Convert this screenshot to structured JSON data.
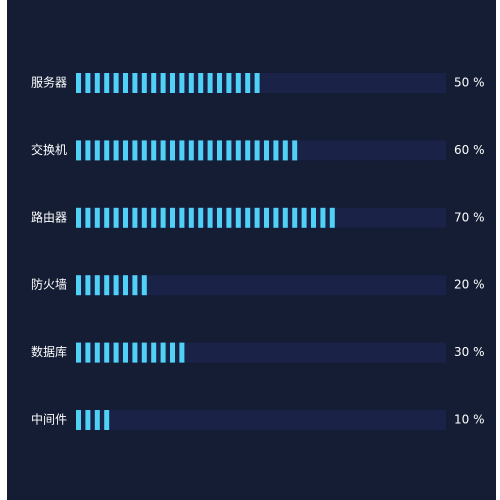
{
  "colors": {
    "background": "#141d34",
    "track": "#1a2247",
    "bar": "#4fd2f5",
    "text": "#ffffff"
  },
  "chart_data": {
    "type": "bar",
    "orientation": "horizontal",
    "style": "segmented",
    "categories": [
      "服务器",
      "交换机",
      "路由器",
      "防火墙",
      "数据库",
      "中间件"
    ],
    "values": [
      50,
      60,
      70,
      20,
      30,
      10
    ],
    "value_labels": [
      "50 %",
      "60 %",
      "70 %",
      "20 %",
      "30 %",
      "10 %"
    ],
    "xlim": [
      0,
      100
    ],
    "unit": "%",
    "grid": false,
    "legend": "none"
  }
}
